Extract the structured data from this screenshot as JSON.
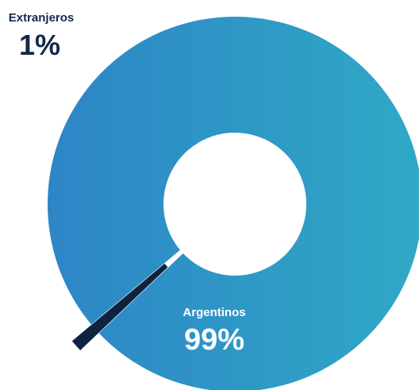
{
  "chart_data": {
    "type": "pie",
    "title": "",
    "slices": [
      {
        "label": "Argentinos",
        "value": 99,
        "value_text": "99%",
        "color": "#2f8fc7",
        "label_color": "#ffffff"
      },
      {
        "label": "Extranjeros",
        "value": 1,
        "value_text": "1%",
        "color": "#0d2340",
        "label_color": "#13294b"
      }
    ],
    "gradient": [
      "#2e85c6",
      "#2fa9c5"
    ],
    "donut": true
  }
}
